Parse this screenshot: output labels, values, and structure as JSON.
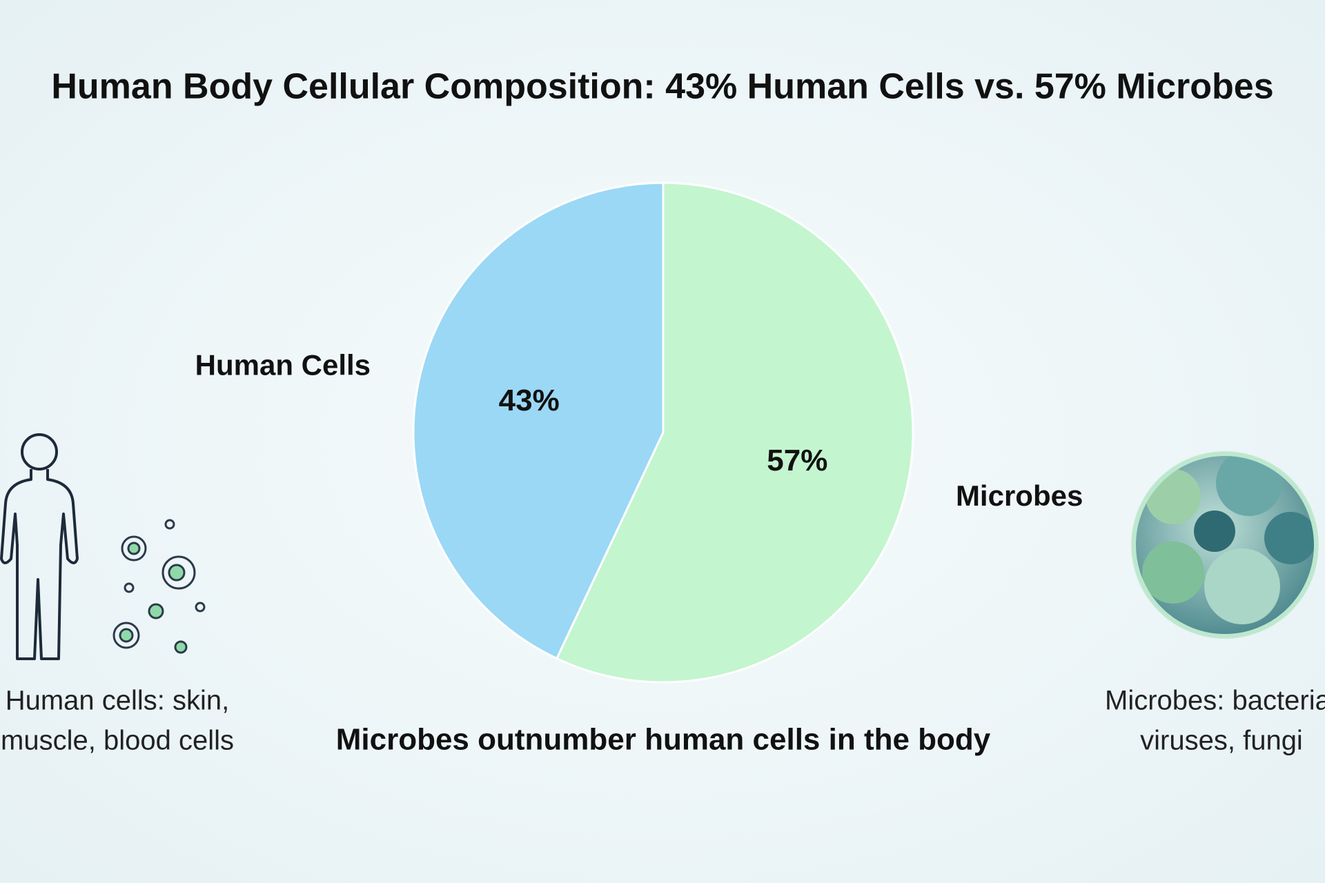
{
  "chart_data": {
    "type": "pie",
    "title": "Human Body Cellular Composition: 43% Human Cells vs. 57% Microbes",
    "categories": [
      "Human Cells",
      "Microbes"
    ],
    "values": [
      43,
      57
    ],
    "value_labels": [
      "43%",
      "57%"
    ],
    "colors": [
      "#9bd8f5",
      "#c3f5cf"
    ],
    "annotation": "Microbes outnumber human cells in the body",
    "captions": [
      [
        "Human cells: skin,",
        "muscle, blood cells"
      ],
      [
        "Microbes: bacteria,",
        "viruses, fungi"
      ]
    ]
  }
}
